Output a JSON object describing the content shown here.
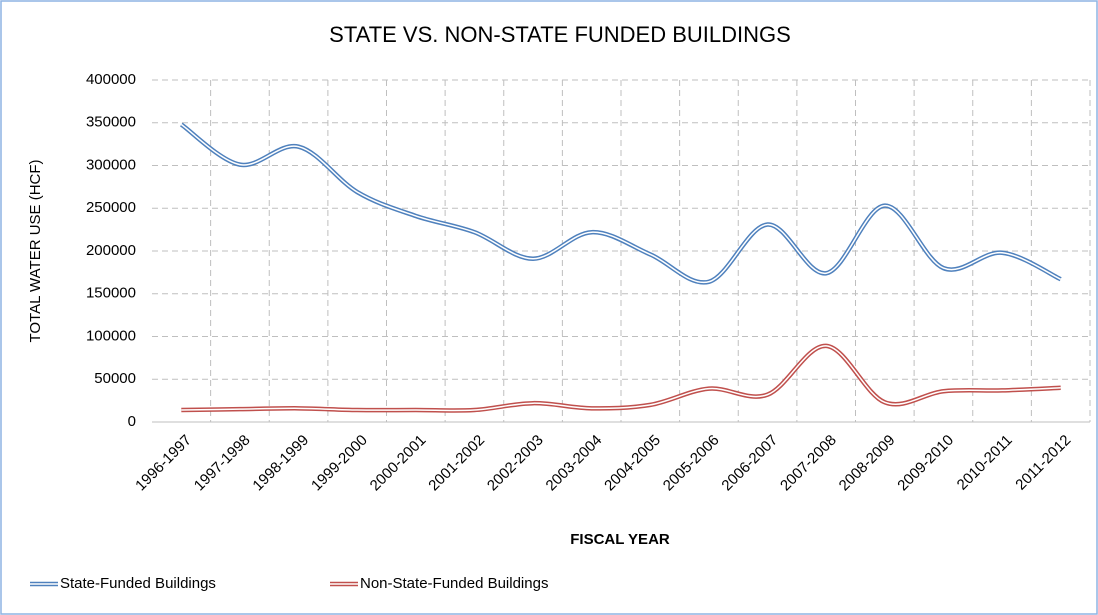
{
  "chart_data": {
    "type": "line",
    "title": "STATE VS. NON-STATE FUNDED BUILDINGS",
    "x_label": "FISCAL YEAR",
    "y_label": "TOTAL WATER USE (HCF)",
    "categories": [
      "1996-1997",
      "1997-1998",
      "1998-1999",
      "1999-2000",
      "2000-2001",
      "2001-2002",
      "2002-2003",
      "2003-2004",
      "2004-2005",
      "2005-2006",
      "2006-2007",
      "2007-2008",
      "2008-2009",
      "2009-2010",
      "2010-2011",
      "2011-2012"
    ],
    "series": [
      {
        "name": "State-Funded Buildings",
        "color": "#4f81bd",
        "values": [
          348000,
          301000,
          322000,
          269000,
          241000,
          222000,
          191000,
          222000,
          196000,
          164000,
          231000,
          174000,
          253000,
          180000,
          198000,
          167000
        ]
      },
      {
        "name": "Non-State-Funded Buildings",
        "color": "#c0504d",
        "values": [
          14000,
          15000,
          16000,
          14000,
          14000,
          14000,
          22000,
          16000,
          20000,
          39000,
          32000,
          89000,
          23000,
          36000,
          37000,
          40000
        ]
      }
    ],
    "ylim": [
      0,
      400000
    ],
    "yticks": [
      0,
      50000,
      100000,
      150000,
      200000,
      250000,
      300000,
      350000,
      400000
    ],
    "grid": true,
    "legend": "bottom"
  }
}
